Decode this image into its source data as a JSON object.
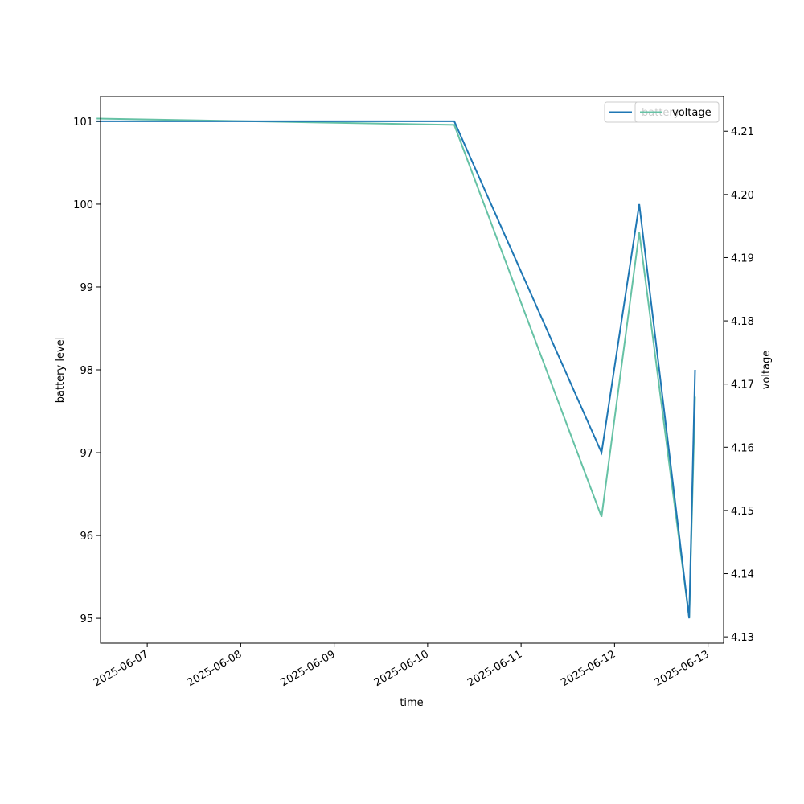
{
  "chart_data": {
    "type": "line",
    "xlabel": "time",
    "ylabel": "battery level",
    "y2label": "voltage",
    "x_range": [
      "2025-06-06T12:00",
      "2025-06-13T04:00"
    ],
    "x_ticks": [
      "2025-06-07",
      "2025-06-08",
      "2025-06-09",
      "2025-06-10",
      "2025-06-11",
      "2025-06-12",
      "2025-06-13"
    ],
    "ylim": [
      94.7,
      101.3
    ],
    "y_ticks": [
      95,
      96,
      97,
      98,
      99,
      100,
      101
    ],
    "y2lim": [
      4.129,
      4.2155
    ],
    "y2_ticks": [
      "4.13",
      "4.14",
      "4.15",
      "4.16",
      "4.17",
      "4.18",
      "4.19",
      "4.20",
      "4.21"
    ],
    "grid": false,
    "series": [
      {
        "name": "battery",
        "axis": "left",
        "color": "#1f77b4",
        "points": [
          {
            "x": "2025-06-06T11:00",
            "y": 101
          },
          {
            "x": "2025-06-10T06:50",
            "y": 101
          },
          {
            "x": "2025-06-11T20:40",
            "y": 97
          },
          {
            "x": "2025-06-12T06:20",
            "y": 100
          },
          {
            "x": "2025-06-12T19:10",
            "y": 95
          },
          {
            "x": "2025-06-12T20:40",
            "y": 98
          }
        ]
      },
      {
        "name": "voltage",
        "axis": "right",
        "color": "#66c2a5",
        "points": [
          {
            "x": "2025-06-06T11:00",
            "y": 4.212
          },
          {
            "x": "2025-06-10T06:50",
            "y": 4.211
          },
          {
            "x": "2025-06-11T20:40",
            "y": 4.149
          },
          {
            "x": "2025-06-12T06:20",
            "y": 4.194
          },
          {
            "x": "2025-06-12T19:10",
            "y": 4.133
          },
          {
            "x": "2025-06-12T20:40",
            "y": 4.168
          }
        ]
      }
    ],
    "legends": [
      {
        "position": "upper-right",
        "entries": [
          "battery"
        ]
      },
      {
        "position": "upper-right",
        "entries": [
          "voltage"
        ]
      }
    ]
  }
}
